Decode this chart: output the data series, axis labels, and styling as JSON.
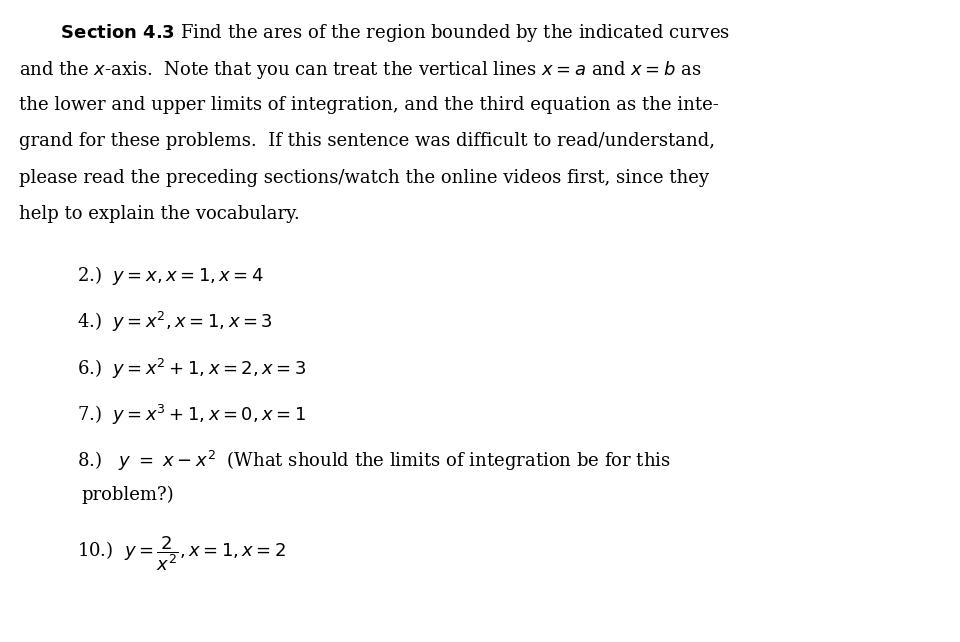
{
  "bg_color": "#ffffff",
  "title_bold": "Section 4.3",
  "title_normal": " Find the ares of the region bounded by the indicated curves",
  "paragraph": "and the $x$-axis.  Note that you can treat the vertical lines $x = a$ and $x = b$ as\nthe lower and upper limits of integration, and the third equation as the inte-\ngrand for these problems.  If this sentence was difficult to read/understand,\nplease read the preceding sections/watch the online videos first, since they\nhelp to explain the vocabulary.",
  "items": [
    {
      "num": "2.)",
      "math": "$y = x, x = 1, x = 4$"
    },
    {
      "num": "4.)",
      "math": "$y = x^2, x = 1, x = 3$"
    },
    {
      "num": "6.)",
      "math": "$y = x^2 + 1, x = 2, x = 3$"
    },
    {
      "num": "7.)",
      "math": "$y = x^3 + 1, x = 0, x = 1$"
    },
    {
      "num": "8.)",
      "math": "$y \\ = \\ x - x^2$  (What should the limits of integration be for this\nproblem?)"
    },
    {
      "num": "10.)",
      "math": "$y = \\dfrac{2}{x^2}, x = 1, x = 2$"
    }
  ],
  "font_size_title": 13,
  "font_size_body": 13,
  "font_size_items": 13,
  "indent_num": 0.07,
  "indent_math": 0.13
}
